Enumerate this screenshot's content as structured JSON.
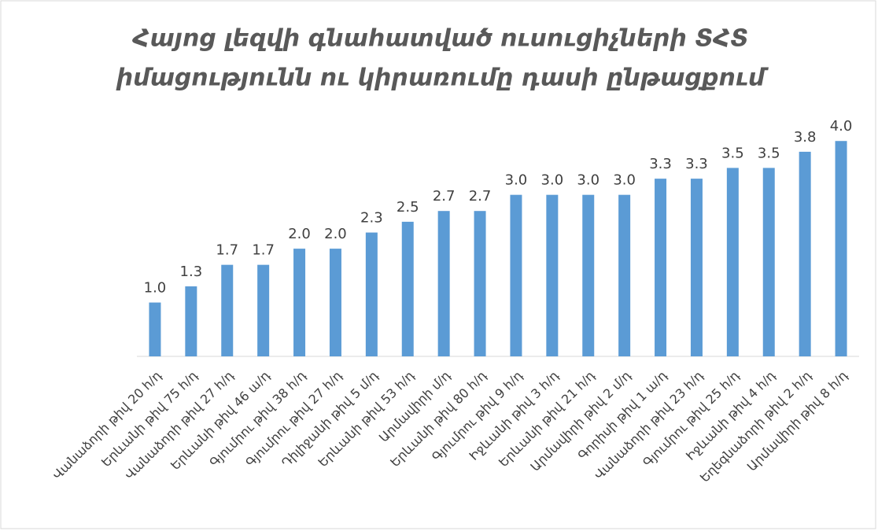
{
  "chart_data": {
    "type": "bar",
    "title": [
      "Հայոց լեզվի գնահատված ուսուցիչների ՏՀՏ",
      "իմացությունն ու կիրառումը դասի ընթացքում"
    ],
    "categories": [
      "Վանաձորի թիվ 20 հ/դ",
      "Երևանի թիվ 75 հ/դ",
      "Վանաձորի թիվ 27 հ/դ",
      "Երևանի թիվ 46 ա/դ",
      "Գյումրու թիվ 38 հ/դ",
      "Գյումրու թիվ 27 հ/դ",
      "Դիլիջանի թիվ 5 մ/դ",
      "Երևանի թիվ 53 հ/դ",
      "Արմավիրի մ/դ",
      "Երևանի թիվ 80 հ/դ",
      "Գյումրու թիվ 9 հ/դ",
      "Իջևանի թիվ 3 հ/դ",
      "Երևանի թիվ 21 հ/դ",
      "Արմավիրի թիվ 2 մ/դ",
      "Գորիսի թիվ 1 ա/դ",
      "Վանաձորի թիվ 23 հ/դ",
      "Գյումրու թիվ 25 հ/դ",
      "Իջևանի թիվ 4 հ/դ",
      "Եղեգնաձորի թիվ 2 հ/դ",
      "Արմավիրի թիվ 8 հ/դ"
    ],
    "values": [
      1.0,
      1.3,
      1.7,
      1.7,
      2.0,
      2.0,
      2.3,
      2.5,
      2.7,
      2.7,
      3.0,
      3.0,
      3.0,
      3.0,
      3.3,
      3.3,
      3.5,
      3.5,
      3.8,
      4.0
    ],
    "value_labels": [
      "1.0",
      "1.3",
      "1.7",
      "1.7",
      "2.0",
      "2.0",
      "2.3",
      "2.5",
      "2.7",
      "2.7",
      "3.0",
      "3.0",
      "3.0",
      "3.0",
      "3.3",
      "3.3",
      "3.5",
      "3.5",
      "3.8",
      "4.0"
    ],
    "color": "#5b9bd5",
    "ylim": [
      0,
      4.5
    ]
  }
}
